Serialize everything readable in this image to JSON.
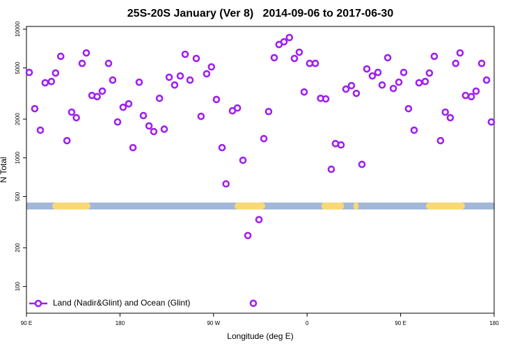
{
  "chart_data": {
    "type": "scatter",
    "title": "25S-20S January (Ver 8)   2014-09-06 to 2017-06-30",
    "x_label": "Longitude (deg E)",
    "y_label": "N Total",
    "x": [
      92.7,
      98,
      103.4,
      108,
      114,
      118,
      123,
      129,
      133.5,
      138,
      143.6,
      147.6,
      153,
      158,
      163,
      169,
      173,
      177.7,
      183,
      188.4,
      192.5,
      198.5,
      202.5,
      207.9,
      212.5,
      218,
      222.6,
      227.3,
      232.6,
      238,
      242.7,
      247.4,
      253.4,
      258,
      263.4,
      268,
      272.8,
      278.2,
      282,
      288.2,
      293,
      298.3,
      303,
      308.3,
      313.7,
      318.4,
      323,
      328.4,
      333,
      337.8,
      343,
      347.8,
      352.5,
      357.2,
      362.5,
      368,
      373,
      378,
      383.3,
      387.3,
      392.7,
      397.4,
      402.7,
      407.4,
      412.8,
      417.5,
      422.8,
      428.2,
      432.2,
      437.6,
      443,
      448.3,
      453,
      457.6,
      463,
      467.7,
      473.7,
      477.7,
      482.4,
      488.4,
      493,
      497.8,
      503,
      507.2,
      512.5,
      518,
      522.6,
      528,
      532.7,
      537.3
    ],
    "series": [
      {
        "name": "Land (Nadir&Glint) and Ocean (Glint)",
        "color": "#a020f0",
        "values": [
          4610,
          2410,
          1640,
          3830,
          3920,
          4560,
          6150,
          1360,
          2265,
          2050,
          5420,
          6540,
          3055,
          2990,
          3300,
          5420,
          4020,
          1900,
          2470,
          2630,
          1200,
          3870,
          2130,
          1770,
          1600,
          2900,
          1670,
          4230,
          3680,
          4330,
          6380,
          4020,
          5920,
          2100,
          4500,
          5090,
          2840,
          1200,
          627,
          2320,
          2440,
          957,
          249,
          74,
          331,
          1410,
          2290,
          6000,
          7600,
          7980,
          8610,
          5920,
          6620,
          3250,
          5420,
          5420,
          2900,
          2870,
          815,
          1290,
          1260,
          3420,
          3640,
          3170,
          889,
          4910,
          4330,
          4610,
          3680,
          6000,
          3460,
          3870,
          4610,
          2410,
          1640,
          3830,
          3920,
          4560,
          6150,
          1360,
          2265,
          2050,
          5420,
          6540,
          3055,
          2990,
          3300,
          5420,
          4020,
          1900
        ]
      }
    ],
    "xlim": [
      90,
      540
    ],
    "xticks": [
      {
        "value": 90,
        "label": "90 E"
      },
      180,
      {
        "value": 270,
        "label": "90 W"
      },
      {
        "value": 360,
        "label": "0"
      },
      {
        "value": 450,
        "label": "90 E"
      },
      {
        "value": 540,
        "label": "180"
      }
    ],
    "ylim": [
      62,
      10500
    ],
    "log_y": true,
    "yticks": [
      100,
      200,
      500,
      1000,
      2000,
      5000,
      10000
    ],
    "legend": "bottom-left"
  }
}
